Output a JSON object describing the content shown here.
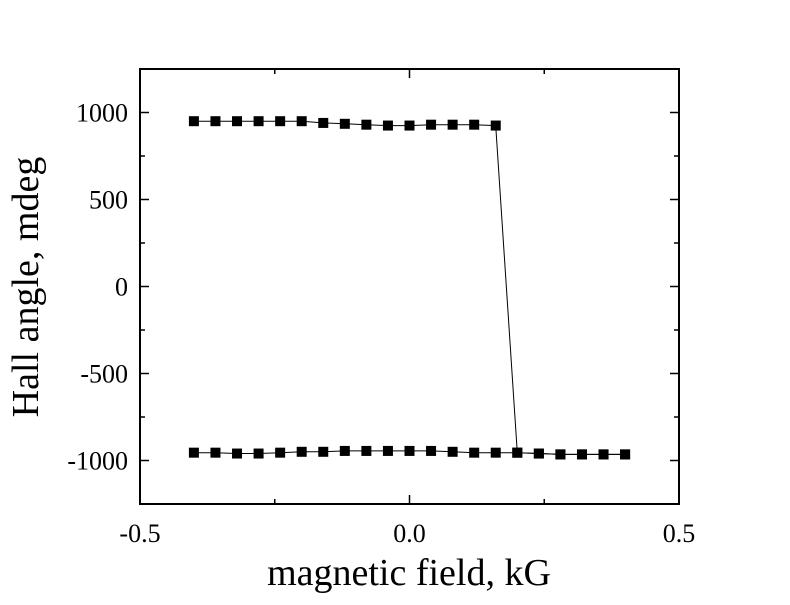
{
  "chart_data": {
    "type": "line",
    "title": "",
    "xlabel": "magnetic field, kG",
    "ylabel": "Hall angle, mdeg",
    "xlim": [
      -0.5,
      0.5
    ],
    "ylim": [
      -1250,
      1250
    ],
    "xticks": [
      -0.5,
      0.0,
      0.5
    ],
    "xtick_labels": [
      "-0.5",
      "0.0",
      "0.5"
    ],
    "yticks": [
      -1000,
      -500,
      0,
      500,
      1000
    ],
    "ytick_labels": [
      "-1000",
      "-500",
      "0",
      "500",
      "1000"
    ],
    "grid": false,
    "marker": "square",
    "color": "#000000",
    "series": [
      {
        "x": [
          -0.4,
          -0.36,
          -0.32,
          -0.28,
          -0.24,
          -0.2,
          -0.16,
          -0.12,
          -0.08,
          -0.04,
          0.0,
          0.04,
          0.08,
          0.12,
          0.16,
          0.2,
          0.24,
          0.28,
          0.32,
          0.36,
          0.4
        ],
        "y": [
          -955,
          -955,
          -960,
          -960,
          -955,
          -950,
          -950,
          -945,
          -945,
          -945,
          -945,
          -945,
          -950,
          -955,
          -955,
          -955,
          -960,
          -965,
          -965,
          -965,
          -965
        ]
      },
      {
        "x": [
          0.4,
          0.36,
          0.32,
          0.28,
          0.24,
          0.2,
          0.16,
          0.12,
          0.08,
          0.04,
          0.0,
          -0.04,
          -0.08,
          -0.12,
          -0.16,
          -0.2,
          -0.24,
          -0.28,
          -0.32,
          -0.36,
          -0.4
        ],
        "y": [
          -965,
          -965,
          -965,
          -965,
          -960,
          -955,
          925,
          930,
          930,
          930,
          925,
          925,
          930,
          935,
          940,
          950,
          950,
          950,
          950,
          950,
          950
        ]
      }
    ]
  }
}
